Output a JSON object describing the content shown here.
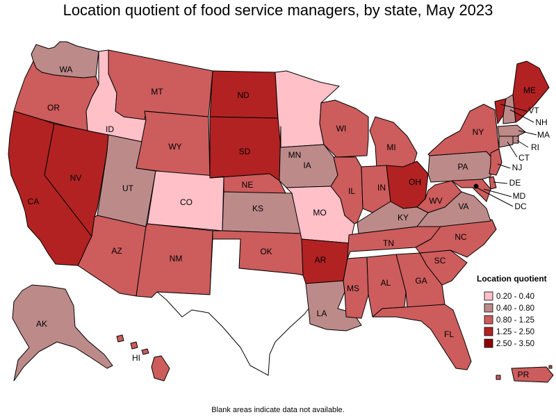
{
  "title": "Location quotient of food service managers, by state, May 2023",
  "footnote": "Blank areas indicate data not available.",
  "legend": {
    "title": "Location quotient",
    "bins": [
      {
        "label": "0.20 - 0.40",
        "color": "#ffc0c8"
      },
      {
        "label": "0.40 - 0.80",
        "color": "#bd8a8a"
      },
      {
        "label": "0.80 - 1.25",
        "color": "#cd5c5c"
      },
      {
        "label": "1.25 - 2.50",
        "color": "#b22222"
      },
      {
        "label": "2.50 - 3.50",
        "color": "#8b0000"
      }
    ]
  },
  "no_data_color": "#ffffff",
  "states": [
    {
      "code": "WA",
      "bin": 1
    },
    {
      "code": "OR",
      "bin": 2
    },
    {
      "code": "CA",
      "bin": 3
    },
    {
      "code": "NV",
      "bin": 3
    },
    {
      "code": "ID",
      "bin": 0
    },
    {
      "code": "MT",
      "bin": 2
    },
    {
      "code": "WY",
      "bin": 2
    },
    {
      "code": "UT",
      "bin": 1
    },
    {
      "code": "AZ",
      "bin": 2
    },
    {
      "code": "CO",
      "bin": 0
    },
    {
      "code": "NM",
      "bin": 2
    },
    {
      "code": "ND",
      "bin": 3
    },
    {
      "code": "SD",
      "bin": 3
    },
    {
      "code": "NE",
      "bin": 2
    },
    {
      "code": "KS",
      "bin": 1
    },
    {
      "code": "OK",
      "bin": 2
    },
    {
      "code": "TX",
      "bin": null
    },
    {
      "code": "MN",
      "bin": 0
    },
    {
      "code": "IA",
      "bin": 1
    },
    {
      "code": "MO",
      "bin": 0
    },
    {
      "code": "AR",
      "bin": 3
    },
    {
      "code": "LA",
      "bin": 1
    },
    {
      "code": "WI",
      "bin": 2
    },
    {
      "code": "IL",
      "bin": 2
    },
    {
      "code": "MI",
      "bin": 2
    },
    {
      "code": "IN",
      "bin": 2
    },
    {
      "code": "OH",
      "bin": 3
    },
    {
      "code": "KY",
      "bin": 1
    },
    {
      "code": "TN",
      "bin": 2
    },
    {
      "code": "MS",
      "bin": 2
    },
    {
      "code": "AL",
      "bin": 2
    },
    {
      "code": "GA",
      "bin": 2
    },
    {
      "code": "FL",
      "bin": 2
    },
    {
      "code": "SC",
      "bin": 2
    },
    {
      "code": "NC",
      "bin": 2
    },
    {
      "code": "VA",
      "bin": 1
    },
    {
      "code": "WV",
      "bin": 2
    },
    {
      "code": "PA",
      "bin": 1
    },
    {
      "code": "NY",
      "bin": 2
    },
    {
      "code": "VT",
      "bin": 3
    },
    {
      "code": "NH",
      "bin": 1
    },
    {
      "code": "ME",
      "bin": 3
    },
    {
      "code": "MA",
      "bin": 1
    },
    {
      "code": "RI",
      "bin": 1
    },
    {
      "code": "CT",
      "bin": 1
    },
    {
      "code": "NJ",
      "bin": 2
    },
    {
      "code": "DE",
      "bin": 2
    },
    {
      "code": "MD",
      "bin": 2
    },
    {
      "code": "DC",
      "bin": 4
    },
    {
      "code": "AK",
      "bin": 1
    },
    {
      "code": "HI",
      "bin": 2
    },
    {
      "code": "PR",
      "bin": 2
    }
  ]
}
